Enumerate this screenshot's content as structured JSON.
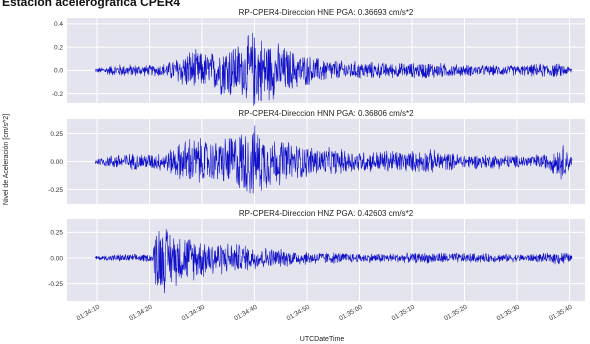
{
  "title": "Estación acelerógrafica CPER4",
  "xlabel": "UTCDateTime",
  "ylabel": "Nivel de Aceleración [cm/s^2]",
  "chart_data": [
    {
      "type": "line",
      "title": "RP-CPER4-Direccion HNE PGA: 0.36693 cm/s^2",
      "channel": "HNE",
      "pga": 0.36693,
      "ylim": [
        -0.28,
        0.45
      ],
      "yticks": [
        "0.4",
        "0.2",
        "0.0",
        "-0.2"
      ],
      "ytick_values": [
        0.4,
        0.2,
        0.0,
        -0.2
      ],
      "color": "#1010c8",
      "envelope": [
        [
          0,
          0.02
        ],
        [
          0.05,
          0.06
        ],
        [
          0.12,
          0.05
        ],
        [
          0.15,
          0.07
        ],
        [
          0.2,
          0.2
        ],
        [
          0.24,
          0.16
        ],
        [
          0.28,
          0.28
        ],
        [
          0.31,
          0.25
        ],
        [
          0.33,
          0.38
        ],
        [
          0.36,
          0.3
        ],
        [
          0.39,
          0.24
        ],
        [
          0.43,
          0.16
        ],
        [
          0.47,
          0.12
        ],
        [
          0.52,
          0.09
        ],
        [
          0.58,
          0.08
        ],
        [
          0.62,
          0.07
        ],
        [
          0.66,
          0.07
        ],
        [
          0.7,
          0.08
        ],
        [
          0.75,
          0.06
        ],
        [
          0.8,
          0.05
        ],
        [
          0.85,
          0.05
        ],
        [
          0.9,
          0.05
        ],
        [
          0.95,
          0.07
        ],
        [
          0.98,
          0.06
        ],
        [
          1,
          0.03
        ]
      ]
    },
    {
      "type": "line",
      "title": "RP-CPER4-Direccion HNN PGA: 0.36806 cm/s^2",
      "channel": "HNN",
      "pga": 0.36806,
      "ylim": [
        -0.38,
        0.38
      ],
      "yticks": [
        "0.25",
        "0.00",
        "-0.25"
      ],
      "ytick_values": [
        0.25,
        0.0,
        -0.25
      ],
      "color": "#1010c8",
      "envelope": [
        [
          0,
          0.03
        ],
        [
          0.05,
          0.08
        ],
        [
          0.12,
          0.08
        ],
        [
          0.15,
          0.1
        ],
        [
          0.2,
          0.25
        ],
        [
          0.25,
          0.2
        ],
        [
          0.3,
          0.3
        ],
        [
          0.33,
          0.36
        ],
        [
          0.37,
          0.25
        ],
        [
          0.42,
          0.18
        ],
        [
          0.47,
          0.14
        ],
        [
          0.52,
          0.12
        ],
        [
          0.58,
          0.1
        ],
        [
          0.62,
          0.12
        ],
        [
          0.66,
          0.1
        ],
        [
          0.7,
          0.12
        ],
        [
          0.75,
          0.08
        ],
        [
          0.8,
          0.07
        ],
        [
          0.85,
          0.07
        ],
        [
          0.9,
          0.06
        ],
        [
          0.95,
          0.08
        ],
        [
          0.98,
          0.18
        ],
        [
          1,
          0.05
        ]
      ]
    },
    {
      "type": "line",
      "title": "RP-CPER4-Direccion HNZ PGA: 0.42603 cm/s^2",
      "channel": "HNZ",
      "pga": 0.42603,
      "ylim": [
        -0.42,
        0.38
      ],
      "yticks": [
        "0.25",
        "0.00",
        "-0.25"
      ],
      "ytick_values": [
        0.25,
        0.0,
        -0.25
      ],
      "color": "#1010c8",
      "envelope": [
        [
          0,
          0.02
        ],
        [
          0.05,
          0.04
        ],
        [
          0.12,
          0.04
        ],
        [
          0.13,
          0.42
        ],
        [
          0.16,
          0.3
        ],
        [
          0.2,
          0.24
        ],
        [
          0.26,
          0.18
        ],
        [
          0.32,
          0.14
        ],
        [
          0.38,
          0.1
        ],
        [
          0.45,
          0.07
        ],
        [
          0.55,
          0.05
        ],
        [
          0.65,
          0.05
        ],
        [
          0.72,
          0.06
        ],
        [
          0.8,
          0.05
        ],
        [
          0.9,
          0.04
        ],
        [
          0.95,
          0.05
        ],
        [
          0.98,
          0.08
        ],
        [
          1,
          0.03
        ]
      ]
    }
  ],
  "xticks": [
    "01:34:10",
    "01:34:20",
    "01:34:30",
    "01:34:40",
    "01:34:50",
    "01:35:00",
    "01:35:10",
    "01:35:20",
    "01:35:30",
    "01:35:40"
  ]
}
